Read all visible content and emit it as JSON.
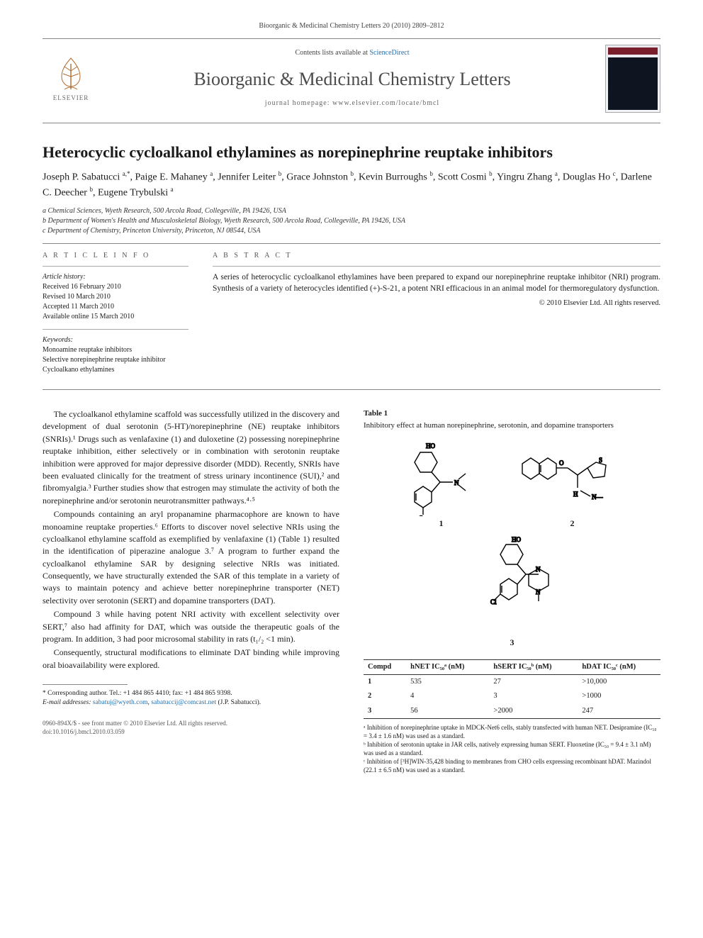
{
  "pub_line": "Bioorganic & Medicinal Chemistry Letters 20 (2010) 2809–2812",
  "masthead": {
    "contents_prefix": "Contents lists available at ",
    "sd_label": "ScienceDirect",
    "journal": "Bioorganic & Medicinal Chemistry Letters",
    "homepage_prefix": "journal homepage: ",
    "homepage_url": "www.elsevier.com/locate/bmcl",
    "publisher": "ELSEVIER"
  },
  "title": "Heterocyclic cycloalkanol ethylamines as norepinephrine reuptake inhibitors",
  "authors_html": "Joseph P. Sabatucci <span class='sup'>a,*</span>, Paige E. Mahaney <span class='sup'>a</span>, Jennifer Leiter <span class='sup'>b</span>, Grace Johnston <span class='sup'>b</span>, Kevin Burroughs <span class='sup'>b</span>, Scott Cosmi <span class='sup'>b</span>, Yingru Zhang <span class='sup'>a</span>, Douglas Ho <span class='sup'>c</span>, Darlene C. Deecher <span class='sup'>b</span>, Eugene Trybulski <span class='sup'>a</span>",
  "affiliations": [
    "a Chemical Sciences, Wyeth Research, 500 Arcola Road, Collegeville, PA 19426, USA",
    "b Department of Women's Health and Musculoskeletal Biology, Wyeth Research, 500 Arcola Road, Collegeville, PA 19426, USA",
    "c Department of Chemistry, Princeton University, Princeton, NJ 08544, USA"
  ],
  "article_info": {
    "heading": "A R T I C L E   I N F O",
    "history_head": "Article history:",
    "history": [
      "Received 16 February 2010",
      "Revised 10 March 2010",
      "Accepted 11 March 2010",
      "Available online 15 March 2010"
    ],
    "keywords_head": "Keywords:",
    "keywords": [
      "Monoamine reuptake inhibitors",
      "Selective norepinephrine reuptake inhibitor",
      "Cycloalkano ethylamines"
    ]
  },
  "abstract": {
    "heading": "A B S T R A C T",
    "text": "A series of heterocyclic cycloalkanol ethylamines have been prepared to expand our norepinephrine reuptake inhibitor (NRI) program. Synthesis of a variety of heterocycles identified (+)-S-21, a potent NRI efficacious in an animal model for thermoregulatory dysfunction.",
    "copyright": "© 2010 Elsevier Ltd. All rights reserved."
  },
  "body": {
    "p1": "The cycloalkanol ethylamine scaffold was successfully utilized in the discovery and development of dual serotonin (5-HT)/norepinephrine (NE) reuptake inhibitors (SNRIs).¹ Drugs such as venlafaxine (1) and duloxetine (2) possessing norepinephrine reuptake inhibition, either selectively or in combination with serotonin reuptake inhibition were approved for major depressive disorder (MDD). Recently, SNRIs have been evaluated clinically for the treatment of stress urinary incontinence (SUI),² and fibromyalgia.³ Further studies show that estrogen may stimulate the activity of both the norepinephrine and/or serotonin neurotransmitter pathways.⁴·⁵",
    "p2": "Compounds containing an aryl propanamine pharmacophore are known to have monoamine reuptake properties.⁶ Efforts to discover novel selective NRIs using the cycloalkanol ethylamine scaffold as exemplified by venlafaxine (1) (Table 1) resulted in the identification of piperazine analogue 3.⁷ A program to further expand the cycloalkanol ethylamine SAR by designing selective NRIs was initiated. Consequently, we have structurally extended the SAR of this template in a variety of ways to maintain potency and achieve better norepinephrine transporter (NET) selectivity over serotonin (SERT) and dopamine transporters (DAT).",
    "p3": "Compound 3 while having potent NRI activity with excellent selectivity over SERT,⁷ also had affinity for DAT, which was outside the therapeutic goals of the program. In addition, 3 had poor microsomal stability in rats (t₁/₂ <1 min).",
    "p4": "Consequently, structural modifications to eliminate DAT binding while improving oral bioavailability were explored."
  },
  "footnotes": {
    "corr": "* Corresponding author. Tel.: +1 484 865 4410; fax: +1 484 865 9398.",
    "email_label": "E-mail addresses:",
    "email1": "sabatuj@wyeth.com",
    "email2": "sabatuccij@comcast.net",
    "email_suffix": "(J.P. Sabatucci)."
  },
  "bottom": {
    "l1": "0960-894X/$ - see front matter © 2010 Elsevier Ltd. All rights reserved.",
    "l2": "doi:10.1016/j.bmcl.2010.03.059"
  },
  "table1": {
    "label": "Table 1",
    "caption": "Inhibitory effect at human norepinephrine, serotonin, and dopamine transporters",
    "columns": [
      "Compd",
      "hNET IC₅₀ᵃ (nM)",
      "hSERT IC₅₀ᵇ (nM)",
      "hDAT IC₅₀ᶜ (nM)"
    ],
    "rows": [
      [
        "1",
        "535",
        "27",
        ">10,000"
      ],
      [
        "2",
        "4",
        "3",
        ">1000"
      ],
      [
        "3",
        "56",
        ">2000",
        "247"
      ]
    ],
    "notes": [
      "ᵃ Inhibition of norepinephrine uptake in MDCK-Net6 cells, stably transfected with human NET. Desipramine (IC₅₀ = 3.4 ± 1.6 nM) was used as a standard.",
      "ᵇ Inhibition of serotonin uptake in JAR cells, natively expressing human SERT. Fluoxetine (IC₅₀ = 9.4 ± 3.1 nM) was used as a standard.",
      "ᶜ Inhibition of [³H]WIN-35,428 binding to membranes from CHO cells expressing recombinant hDAT. Mazindol (22.1 ± 6.5 nM) was used as a standard."
    ],
    "struct_labels": [
      "1",
      "2",
      "3"
    ]
  },
  "colors": {
    "link": "#1f6fb2",
    "rule": "#888888",
    "text": "#1a1a1a",
    "bg": "#ffffff",
    "cover_bar": "#7a1e2b"
  }
}
